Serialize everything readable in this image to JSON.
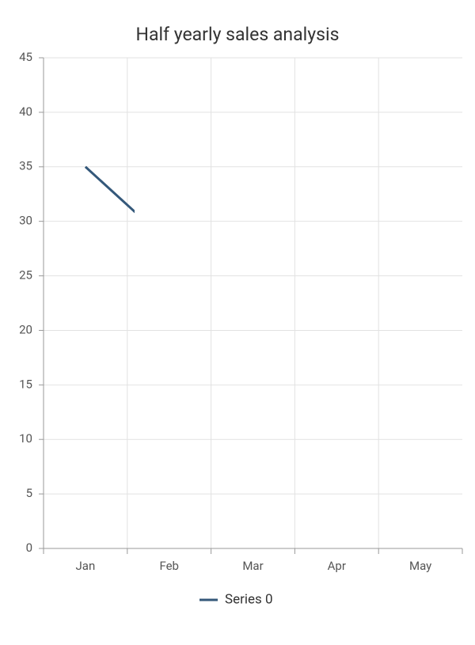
{
  "chart_data": {
    "type": "line",
    "title": "Half yearly sales analysis",
    "categories": [
      "Jan",
      "Feb",
      "Mar",
      "Apr",
      "May"
    ],
    "series": [
      {
        "name": "Series 0",
        "color": "#34587a",
        "values": [
          35,
          28,
          null,
          null,
          null
        ]
      }
    ],
    "ylim": [
      0,
      45
    ],
    "yticks": [
      0,
      5,
      10,
      15,
      20,
      25,
      30,
      35,
      40,
      45
    ],
    "grid": true,
    "legend": "bottom"
  }
}
